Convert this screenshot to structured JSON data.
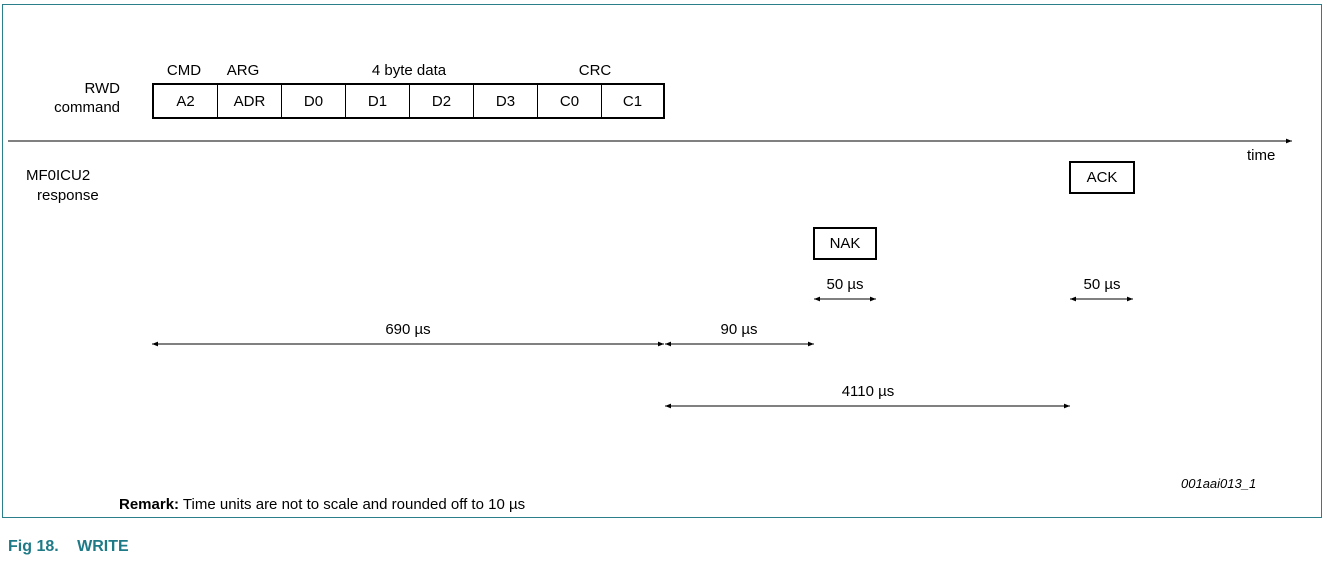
{
  "labels": {
    "rwd_line1": "RWD",
    "rwd_line2": "command",
    "resp_line1": "MF0ICU2",
    "resp_line2": "response",
    "time": "time"
  },
  "field_groups": {
    "cmd": "CMD",
    "arg": "ARG",
    "data": "4 byte data",
    "crc": "CRC"
  },
  "command_bytes": [
    "A2",
    "ADR",
    "D0",
    "D1",
    "D2",
    "D3",
    "C0",
    "C1"
  ],
  "responses": {
    "nak": "NAK",
    "ack": "ACK"
  },
  "timings": {
    "nak_duration": "50 µs",
    "ack_duration": "50 µs",
    "command_duration": "690 µs",
    "nak_delay": "90 µs",
    "ack_delay": "4110 µs"
  },
  "figure_code": "001aai013_1",
  "remark_label": "Remark:",
  "remark_text": " Time units are not to scale and rounded off to 10 µs",
  "figure_number": "Fig 18.",
  "figure_title": "WRITE"
}
